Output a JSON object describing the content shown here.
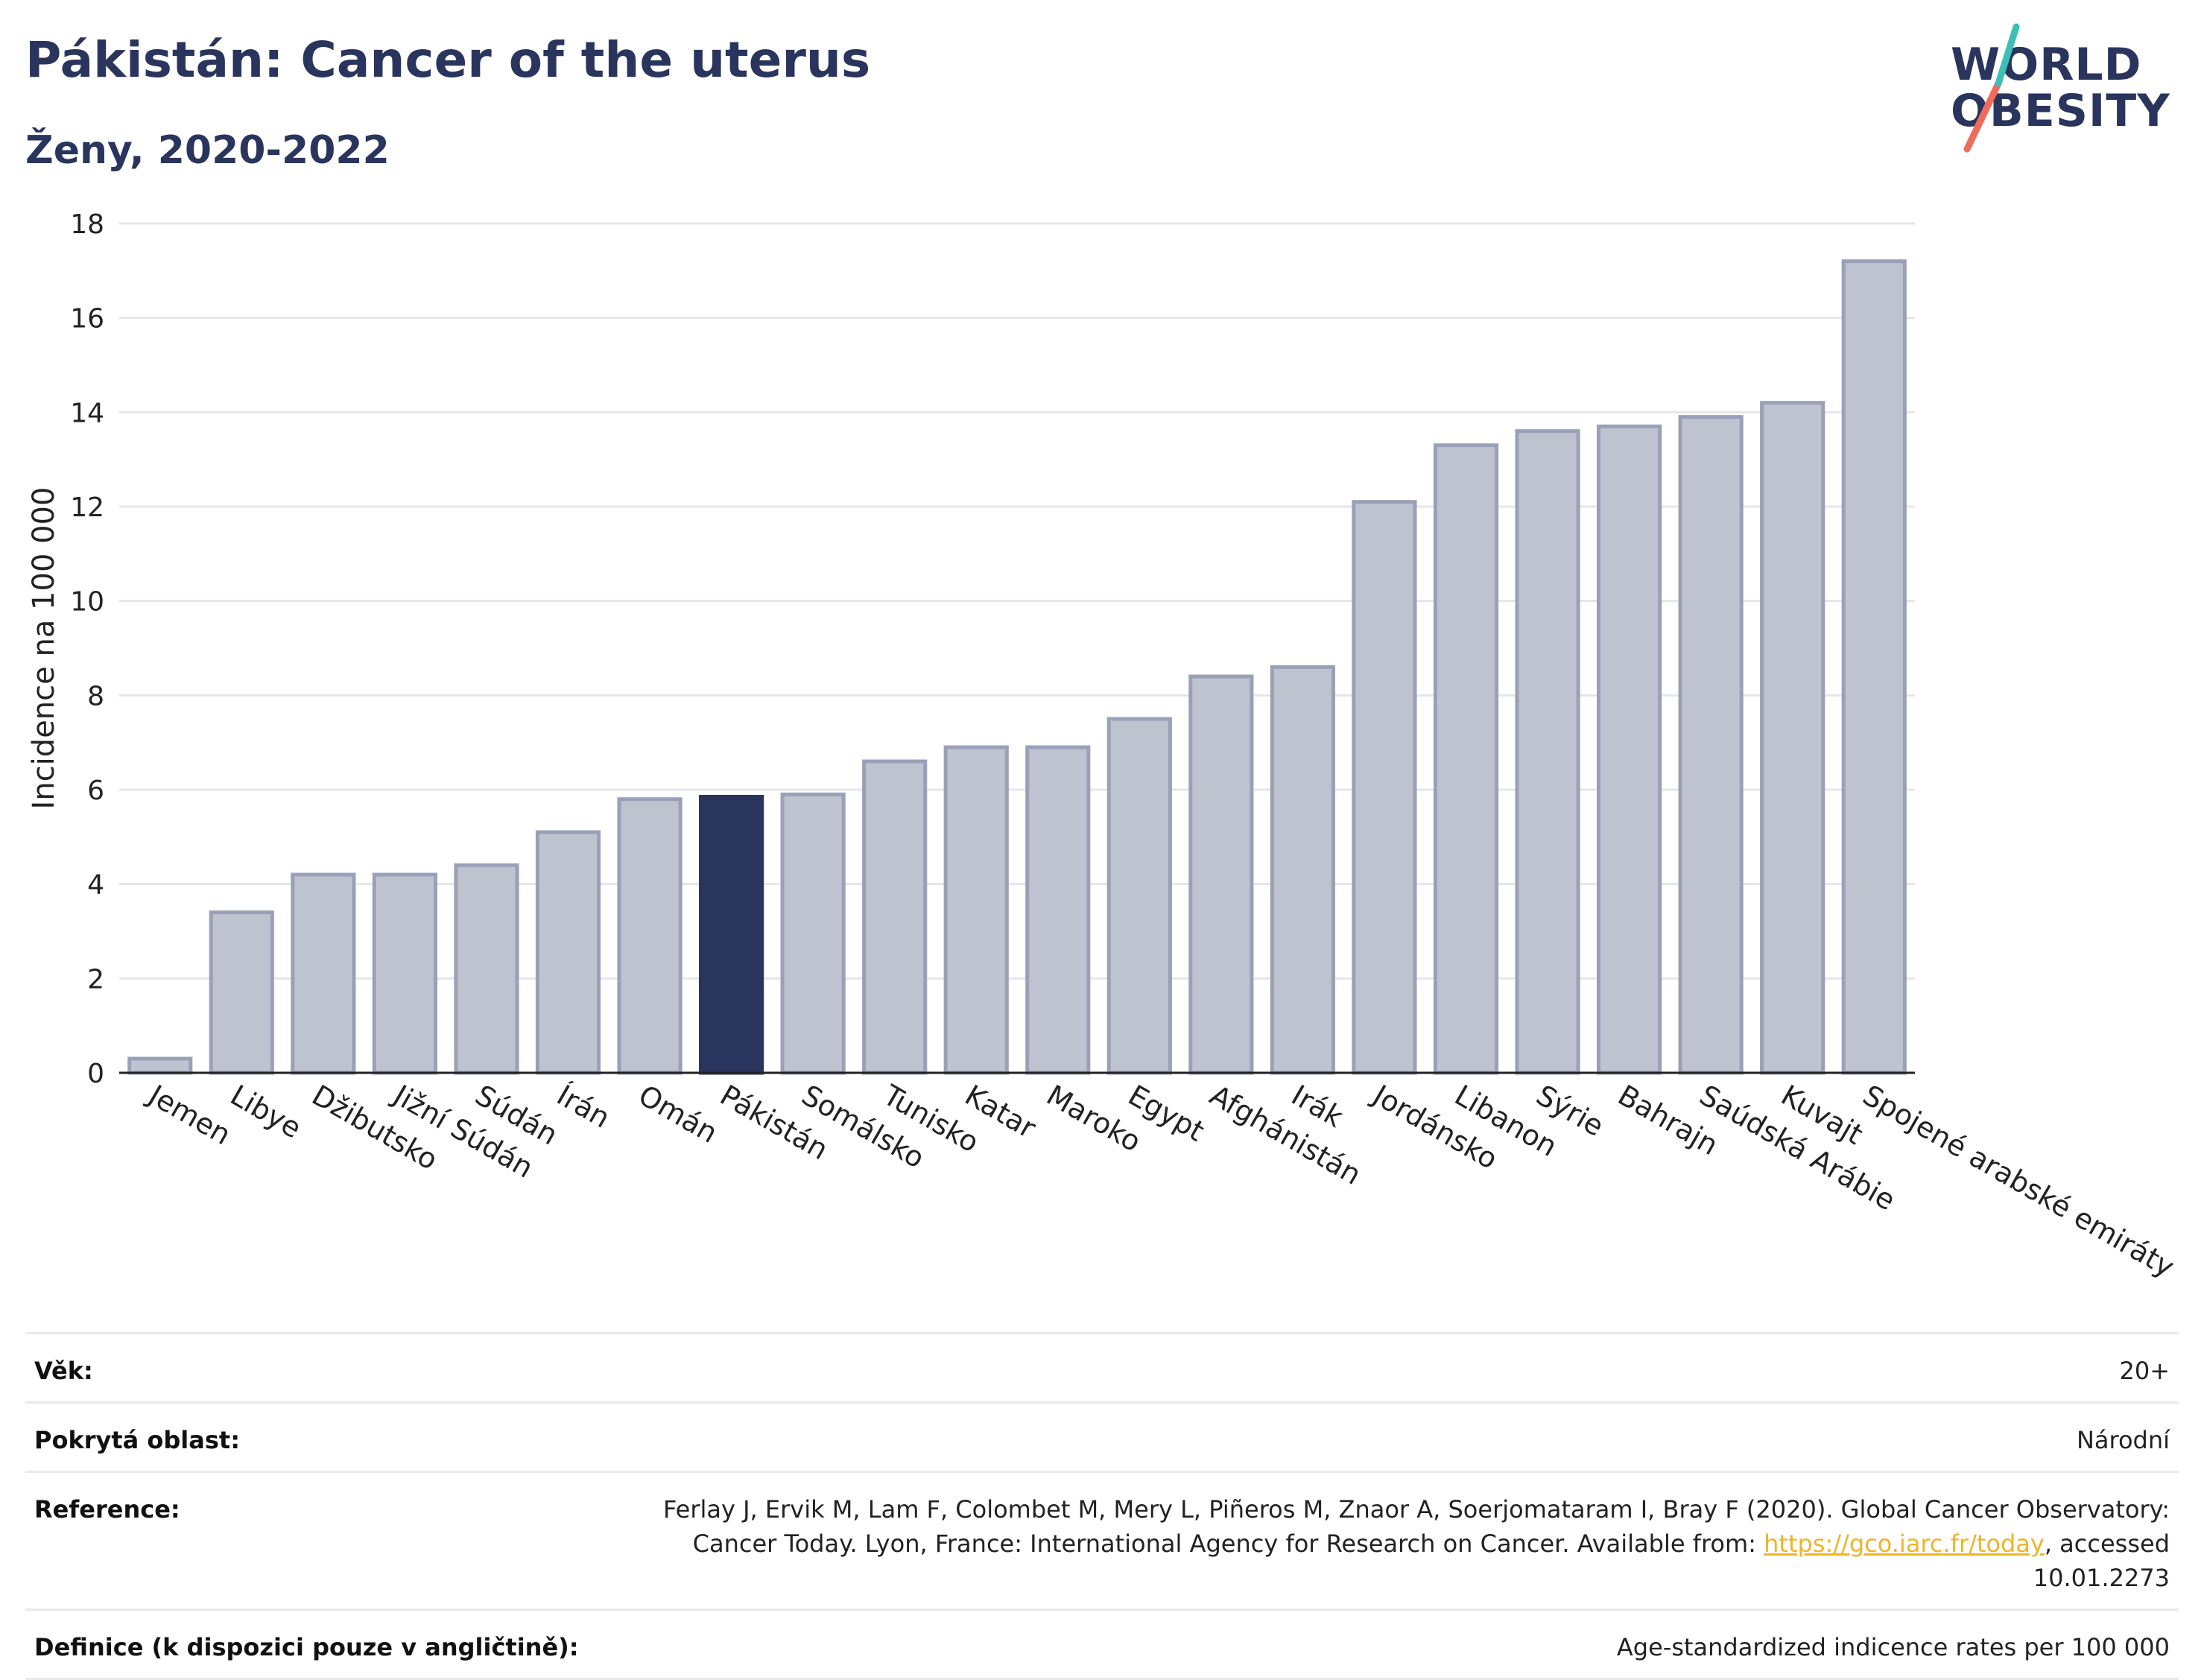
{
  "header": {
    "title": "Pákistán: Cancer of the uterus",
    "subtitle": "Ženy, 2020-2022"
  },
  "logo": {
    "line1": "WORLD",
    "line2": "OBESITY",
    "colors": {
      "text": "#2a355e",
      "slash_top": "#3cbfb4",
      "slash_bottom": "#ef6b5b"
    }
  },
  "chart_data": {
    "type": "bar",
    "title": "",
    "xlabel": "",
    "ylabel": "Incidence na 100 000",
    "ylim": [
      0,
      18
    ],
    "yticks": [
      0,
      2,
      4,
      6,
      8,
      10,
      12,
      14,
      16,
      18
    ],
    "grid": true,
    "categories": [
      "Jemen",
      "Libye",
      "Džibutsko",
      "Jižní Súdán",
      "Súdán",
      "Írán",
      "Omán",
      "Pákistán",
      "Somálsko",
      "Tunisko",
      "Katar",
      "Maroko",
      "Egypt",
      "Afghánistán",
      "Irák",
      "Jordánsko",
      "Libanon",
      "Sýrie",
      "Bahrajn",
      "Saúdská Arábie",
      "Kuvajt",
      "Spojené arabské emiráty"
    ],
    "values": [
      0.3,
      3.4,
      4.2,
      4.2,
      4.4,
      5.1,
      5.8,
      5.85,
      5.9,
      6.6,
      6.9,
      6.9,
      7.5,
      8.4,
      8.6,
      12.1,
      13.3,
      13.6,
      13.7,
      13.9,
      14.2,
      17.2
    ],
    "highlight": "Pákistán",
    "colors": {
      "bar": "#bfc3d0",
      "bar_border": "#9aa0b7",
      "highlight": "#2a355e",
      "grid": "#e6e6ea",
      "axis": "#222222"
    }
  },
  "info": {
    "rows": [
      {
        "label": "Věk:",
        "value": "20+"
      },
      {
        "label": "Pokrytá oblast:",
        "value": "Národní"
      },
      {
        "label": "Reference:",
        "value_before": "Ferlay J, Ervik M, Lam F, Colombet M, Mery L, Piñeros M, Znaor A, Soerjomataram I, Bray F (2020). Global Cancer Observatory: Cancer Today. Lyon, France: International Agency for Research on Cancer. Available from: ",
        "link": "https://gco.iarc.fr/today",
        "value_after": ", accessed 10.01.2273"
      },
      {
        "label": "Definice (k dispozici pouze v angličtině):",
        "value": "Age-standardized indicence rates per 100 000"
      }
    ]
  }
}
